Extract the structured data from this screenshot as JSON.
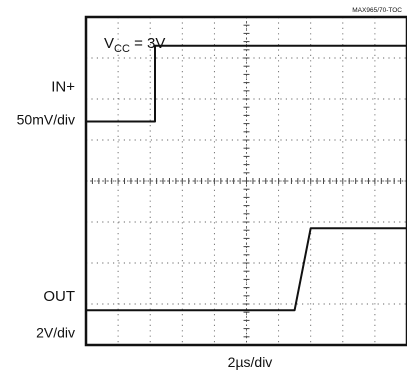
{
  "chart_data": {
    "type": "line",
    "title": "",
    "source_code": "MAX965/70-TOC",
    "supply_label": {
      "base": "V",
      "sub": "CC",
      "rest": " = 3V"
    },
    "x_scale_label": "2µs/div",
    "x_divisions": 10,
    "y_divisions": 8,
    "x_range_div": [
      0,
      10
    ],
    "y_range_div": [
      0,
      8
    ],
    "grid": true,
    "channels": [
      {
        "name": "IN+",
        "scale": "50mV/div",
        "label_y_div": 1.7,
        "scale_y_div": 2.5,
        "x_div": [
          0,
          2.15,
          2.15,
          10
        ],
        "y_div": [
          2.55,
          2.55,
          0.7,
          0.7
        ]
      },
      {
        "name": "OUT",
        "scale": "2V/div",
        "label_y_div": 6.8,
        "scale_y_div": 7.7,
        "x_div": [
          0,
          6.5,
          7.0,
          10
        ],
        "y_div": [
          7.15,
          7.15,
          5.15,
          5.15
        ]
      }
    ]
  }
}
